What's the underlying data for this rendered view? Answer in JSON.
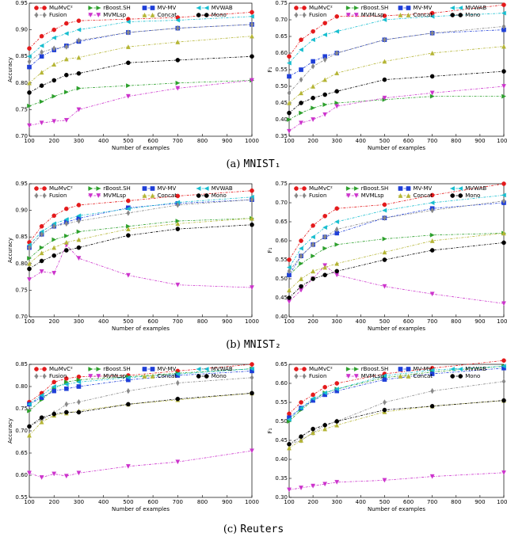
{
  "chart_data": [
    {
      "type": "line",
      "xlabel": "Number of examples",
      "ylabel": "Accuracy",
      "x": [
        100,
        150,
        200,
        250,
        300,
        500,
        700,
        1000
      ],
      "xlim": [
        100,
        1000
      ],
      "xticks": [
        100,
        200,
        300,
        400,
        500,
        600,
        700,
        800,
        900,
        1000
      ],
      "ylim": [
        0.7,
        0.95
      ],
      "yticks": [
        {
          "value": 0.7,
          "label": "0.70"
        },
        0.75,
        {
          "value": 0.8,
          "label": "0.80"
        },
        0.85,
        {
          "value": 0.9,
          "label": "0.90"
        },
        0.95
      ],
      "series": [
        {
          "name": "MωMvC²",
          "color": "#e41a1c",
          "marker": "circle",
          "values": [
            0.865,
            0.888,
            0.9,
            0.912,
            0.917,
            0.92,
            0.923,
            0.933
          ]
        },
        {
          "name": "rBoost.SH",
          "color": "#2ca02c",
          "marker": "triangle-right",
          "values": [
            0.757,
            0.765,
            0.775,
            0.783,
            0.79,
            0.795,
            0.8,
            0.805
          ]
        },
        {
          "name": "MV-MV",
          "color": "#1f3fd8",
          "marker": "square",
          "values": [
            0.83,
            0.85,
            0.862,
            0.87,
            0.878,
            0.895,
            0.903,
            0.91
          ]
        },
        {
          "name": "MVWAB",
          "color": "#17becf",
          "marker": "triangle-left",
          "values": [
            0.85,
            0.87,
            0.885,
            0.893,
            0.9,
            0.915,
            0.918,
            0.925
          ]
        },
        {
          "name": "Fusion",
          "color": "#888888",
          "marker": "diamond",
          "values": [
            0.84,
            0.858,
            0.865,
            0.868,
            0.88,
            0.895,
            0.903,
            0.91
          ]
        },
        {
          "name": "MVMLsp",
          "color": "#cc33cc",
          "marker": "triangle-down",
          "values": [
            0.72,
            0.725,
            0.728,
            0.73,
            0.75,
            0.775,
            0.79,
            0.805
          ]
        },
        {
          "name": "Concat",
          "color": "#b5b535",
          "marker": "triangle-up",
          "values": [
            0.8,
            0.82,
            0.835,
            0.845,
            0.848,
            0.868,
            0.877,
            0.888
          ]
        },
        {
          "name": "Mono",
          "color": "#000000",
          "marker": "circle",
          "values": [
            0.782,
            0.795,
            0.805,
            0.815,
            0.818,
            0.838,
            0.843,
            0.85
          ]
        }
      ]
    },
    {
      "type": "line",
      "xlabel": "Number of examples",
      "ylabel": "F₁",
      "x": [
        100,
        150,
        200,
        250,
        300,
        500,
        700,
        1000
      ],
      "xlim": [
        100,
        1000
      ],
      "xticks": [
        100,
        200,
        300,
        400,
        500,
        600,
        700,
        800,
        900,
        1000
      ],
      "ylim": [
        0.35,
        0.75
      ],
      "yticks": [
        0.35,
        {
          "value": 0.4,
          "label": "0.40"
        },
        0.45,
        {
          "value": 0.5,
          "label": "0.50"
        },
        0.55,
        {
          "value": 0.6,
          "label": "0.60"
        },
        0.65,
        {
          "value": 0.7,
          "label": "0.70"
        },
        0.75
      ],
      "series": [
        {
          "name": "MωMvC²",
          "color": "#e41a1c",
          "marker": "circle",
          "values": [
            0.59,
            0.64,
            0.665,
            0.69,
            0.71,
            0.712,
            0.72,
            0.745
          ]
        },
        {
          "name": "rBoost.SH",
          "color": "#2ca02c",
          "marker": "triangle-right",
          "values": [
            0.4,
            0.42,
            0.435,
            0.445,
            0.45,
            0.46,
            0.47,
            0.47
          ]
        },
        {
          "name": "MV-MV",
          "color": "#1f3fd8",
          "marker": "square",
          "values": [
            0.53,
            0.55,
            0.575,
            0.59,
            0.6,
            0.64,
            0.66,
            0.67
          ]
        },
        {
          "name": "MVWAB",
          "color": "#17becf",
          "marker": "triangle-left",
          "values": [
            0.57,
            0.61,
            0.64,
            0.655,
            0.665,
            0.7,
            0.71,
            0.72
          ]
        },
        {
          "name": "Fusion",
          "color": "#888888",
          "marker": "diamond",
          "values": [
            0.48,
            0.52,
            0.56,
            0.58,
            0.6,
            0.64,
            0.66,
            0.68
          ]
        },
        {
          "name": "MVMLsp",
          "color": "#cc33cc",
          "marker": "triangle-down",
          "values": [
            0.365,
            0.39,
            0.4,
            0.415,
            0.44,
            0.465,
            0.48,
            0.5
          ]
        },
        {
          "name": "Concat",
          "color": "#b5b535",
          "marker": "triangle-up",
          "values": [
            0.45,
            0.48,
            0.5,
            0.52,
            0.54,
            0.575,
            0.6,
            0.62
          ]
        },
        {
          "name": "Mono",
          "color": "#000000",
          "marker": "circle",
          "values": [
            0.42,
            0.45,
            0.465,
            0.475,
            0.485,
            0.52,
            0.53,
            0.545
          ]
        }
      ]
    },
    {
      "type": "line",
      "xlabel": "Number of examples",
      "ylabel": "Accuracy",
      "x": [
        100,
        150,
        200,
        250,
        300,
        500,
        700,
        1000
      ],
      "xlim": [
        100,
        1000
      ],
      "xticks": [
        100,
        200,
        300,
        400,
        500,
        600,
        700,
        800,
        900,
        1000
      ],
      "ylim": [
        0.7,
        0.95
      ],
      "yticks": [
        {
          "value": 0.7,
          "label": "0.70"
        },
        0.75,
        {
          "value": 0.8,
          "label": "0.80"
        },
        0.85,
        {
          "value": 0.9,
          "label": "0.90"
        },
        0.95
      ],
      "series": [
        {
          "name": "MωMvC²",
          "color": "#e41a1c",
          "marker": "circle",
          "values": [
            0.84,
            0.87,
            0.89,
            0.903,
            0.91,
            0.918,
            0.927,
            0.937
          ]
        },
        {
          "name": "rBoost.SH",
          "color": "#2ca02c",
          "marker": "triangle-right",
          "values": [
            0.81,
            0.83,
            0.845,
            0.852,
            0.86,
            0.87,
            0.88,
            0.885
          ]
        },
        {
          "name": "MV-MV",
          "color": "#1f3fd8",
          "marker": "square",
          "values": [
            0.83,
            0.855,
            0.87,
            0.878,
            0.885,
            0.905,
            0.913,
            0.92
          ]
        },
        {
          "name": "MVWAB",
          "color": "#17becf",
          "marker": "triangle-left",
          "values": [
            0.835,
            0.86,
            0.875,
            0.883,
            0.89,
            0.903,
            0.915,
            0.925
          ]
        },
        {
          "name": "Fusion",
          "color": "#888888",
          "marker": "diamond",
          "values": [
            0.83,
            0.855,
            0.87,
            0.875,
            0.88,
            0.895,
            0.91,
            0.92
          ]
        },
        {
          "name": "MVMLsp",
          "color": "#cc33cc",
          "marker": "triangle-down",
          "values": [
            0.77,
            0.785,
            0.782,
            0.835,
            0.81,
            0.778,
            0.76,
            0.755
          ]
        },
        {
          "name": "Concat",
          "color": "#b5b535",
          "marker": "triangle-up",
          "values": [
            0.8,
            0.82,
            0.83,
            0.84,
            0.845,
            0.865,
            0.875,
            0.885
          ]
        },
        {
          "name": "Mono",
          "color": "#000000",
          "marker": "circle",
          "values": [
            0.79,
            0.805,
            0.815,
            0.825,
            0.83,
            0.853,
            0.865,
            0.873
          ]
        }
      ]
    },
    {
      "type": "line",
      "xlabel": "Number of examples",
      "ylabel": "F₁",
      "x": [
        100,
        150,
        200,
        250,
        300,
        500,
        700,
        1000
      ],
      "xlim": [
        100,
        1000
      ],
      "xticks": [
        100,
        200,
        300,
        400,
        500,
        600,
        700,
        800,
        900,
        1000
      ],
      "ylim": [
        0.4,
        0.75
      ],
      "yticks": [
        {
          "value": 0.4,
          "label": "0.40"
        },
        0.45,
        {
          "value": 0.5,
          "label": "0.50"
        },
        0.55,
        {
          "value": 0.6,
          "label": "0.60"
        },
        0.65,
        {
          "value": 0.7,
          "label": "0.70"
        },
        0.75
      ],
      "series": [
        {
          "name": "MωMvC²",
          "color": "#e41a1c",
          "marker": "circle",
          "values": [
            0.55,
            0.6,
            0.64,
            0.665,
            0.685,
            0.695,
            0.72,
            0.75
          ]
        },
        {
          "name": "rBoost.SH",
          "color": "#2ca02c",
          "marker": "triangle-right",
          "values": [
            0.51,
            0.54,
            0.56,
            0.58,
            0.59,
            0.605,
            0.615,
            0.62
          ]
        },
        {
          "name": "MV-MV",
          "color": "#1f3fd8",
          "marker": "square",
          "values": [
            0.51,
            0.56,
            0.59,
            0.61,
            0.62,
            0.66,
            0.685,
            0.7
          ]
        },
        {
          "name": "MVWAB",
          "color": "#17becf",
          "marker": "triangle-left",
          "values": [
            0.53,
            0.58,
            0.61,
            0.635,
            0.65,
            0.68,
            0.7,
            0.72
          ]
        },
        {
          "name": "Fusion",
          "color": "#888888",
          "marker": "diamond",
          "values": [
            0.52,
            0.56,
            0.59,
            0.61,
            0.63,
            0.66,
            0.68,
            0.705
          ]
        },
        {
          "name": "MVMLsp",
          "color": "#cc33cc",
          "marker": "triangle-down",
          "values": [
            0.44,
            0.47,
            0.5,
            0.535,
            0.51,
            0.48,
            0.46,
            0.435
          ]
        },
        {
          "name": "Concat",
          "color": "#b5b535",
          "marker": "triangle-up",
          "values": [
            0.47,
            0.5,
            0.52,
            0.53,
            0.54,
            0.57,
            0.6,
            0.62
          ]
        },
        {
          "name": "Mono",
          "color": "#000000",
          "marker": "circle",
          "values": [
            0.45,
            0.48,
            0.5,
            0.51,
            0.52,
            0.55,
            0.575,
            0.595
          ]
        }
      ]
    },
    {
      "type": "line",
      "xlabel": "Number of examples",
      "ylabel": "Accuracy",
      "x": [
        100,
        150,
        200,
        250,
        300,
        500,
        700,
        1000
      ],
      "xlim": [
        100,
        1000
      ],
      "xticks": [
        100,
        200,
        300,
        400,
        500,
        600,
        700,
        800,
        900,
        1000
      ],
      "ylim": [
        0.55,
        0.85
      ],
      "yticks": [
        0.55,
        {
          "value": 0.6,
          "label": "0.60"
        },
        0.65,
        {
          "value": 0.7,
          "label": "0.70"
        },
        0.75,
        {
          "value": 0.8,
          "label": "0.80"
        },
        0.85
      ],
      "series": [
        {
          "name": "MωMvC²",
          "color": "#e41a1c",
          "marker": "circle",
          "values": [
            0.765,
            0.785,
            0.81,
            0.818,
            0.822,
            0.825,
            0.835,
            0.85
          ]
        },
        {
          "name": "rBoost.SH",
          "color": "#2ca02c",
          "marker": "triangle-right",
          "values": [
            0.745,
            0.77,
            0.795,
            0.81,
            0.815,
            0.822,
            0.83,
            0.84
          ]
        },
        {
          "name": "MV-MV",
          "color": "#1f3fd8",
          "marker": "square",
          "values": [
            0.76,
            0.775,
            0.79,
            0.795,
            0.8,
            0.815,
            0.825,
            0.835
          ]
        },
        {
          "name": "MVWAB",
          "color": "#17becf",
          "marker": "triangle-left",
          "values": [
            0.76,
            0.78,
            0.8,
            0.805,
            0.81,
            0.82,
            0.828,
            0.84
          ]
        },
        {
          "name": "Fusion",
          "color": "#888888",
          "marker": "diamond",
          "values": [
            0.71,
            0.725,
            0.74,
            0.76,
            0.765,
            0.79,
            0.808,
            0.82
          ]
        },
        {
          "name": "MVMLsp",
          "color": "#cc33cc",
          "marker": "triangle-down",
          "values": [
            0.605,
            0.595,
            0.603,
            0.598,
            0.605,
            0.62,
            0.63,
            0.655
          ]
        },
        {
          "name": "Concat",
          "color": "#b5b535",
          "marker": "triangle-up",
          "values": [
            0.69,
            0.72,
            0.735,
            0.74,
            0.745,
            0.76,
            0.77,
            0.785
          ]
        },
        {
          "name": "Mono",
          "color": "#000000",
          "marker": "circle",
          "values": [
            0.71,
            0.73,
            0.738,
            0.742,
            0.742,
            0.76,
            0.772,
            0.785
          ]
        }
      ]
    },
    {
      "type": "line",
      "xlabel": "Number of examples",
      "ylabel": "F₁",
      "x": [
        100,
        150,
        200,
        250,
        300,
        500,
        700,
        1000
      ],
      "xlim": [
        100,
        1000
      ],
      "xticks": [
        100,
        200,
        300,
        400,
        500,
        600,
        700,
        800,
        900,
        1000
      ],
      "ylim": [
        0.3,
        0.65
      ],
      "yticks": [
        {
          "value": 0.3,
          "label": "0.30"
        },
        0.35,
        {
          "value": 0.4,
          "label": "0.40"
        },
        0.45,
        {
          "value": 0.5,
          "label": "0.50"
        },
        0.55,
        {
          "value": 0.6,
          "label": "0.60"
        },
        0.65
      ],
      "series": [
        {
          "name": "MωMvC²",
          "color": "#e41a1c",
          "marker": "circle",
          "values": [
            0.52,
            0.55,
            0.57,
            0.59,
            0.6,
            0.625,
            0.64,
            0.66
          ]
        },
        {
          "name": "rBoost.SH",
          "color": "#2ca02c",
          "marker": "triangle-right",
          "values": [
            0.5,
            0.53,
            0.555,
            0.575,
            0.585,
            0.615,
            0.63,
            0.645
          ]
        },
        {
          "name": "MV-MV",
          "color": "#1f3fd8",
          "marker": "square",
          "values": [
            0.51,
            0.535,
            0.555,
            0.57,
            0.58,
            0.61,
            0.625,
            0.64
          ]
        },
        {
          "name": "MVWAB",
          "color": "#17becf",
          "marker": "triangle-left",
          "values": [
            0.505,
            0.535,
            0.56,
            0.575,
            0.585,
            0.62,
            0.635,
            0.645
          ]
        },
        {
          "name": "Fusion",
          "color": "#888888",
          "marker": "diamond",
          "values": [
            0.44,
            0.45,
            0.47,
            0.49,
            0.5,
            0.55,
            0.58,
            0.605
          ]
        },
        {
          "name": "MVMLsp",
          "color": "#cc33cc",
          "marker": "triangle-down",
          "values": [
            0.32,
            0.325,
            0.33,
            0.335,
            0.34,
            0.345,
            0.355,
            0.365
          ]
        },
        {
          "name": "Concat",
          "color": "#b5b535",
          "marker": "triangle-up",
          "values": [
            0.43,
            0.45,
            0.47,
            0.48,
            0.49,
            0.525,
            0.54,
            0.555
          ]
        },
        {
          "name": "Mono",
          "color": "#000000",
          "marker": "circle",
          "values": [
            0.44,
            0.46,
            0.48,
            0.49,
            0.5,
            0.53,
            0.54,
            0.555
          ]
        }
      ]
    }
  ],
  "captions": [
    {
      "label": "(a)",
      "dataset": "MNIST₁"
    },
    {
      "label": "(b)",
      "dataset": "MNIST₂"
    },
    {
      "label": "(c)",
      "dataset": "Reuters"
    }
  ]
}
